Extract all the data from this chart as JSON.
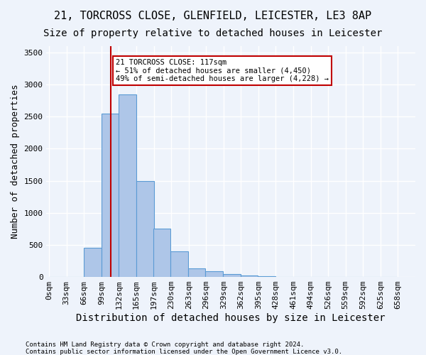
{
  "title1": "21, TORCROSS CLOSE, GLENFIELD, LEICESTER, LE3 8AP",
  "title2": "Size of property relative to detached houses in Leicester",
  "xlabel": "Distribution of detached houses by size in Leicester",
  "ylabel": "Number of detached properties",
  "footnote1": "Contains HM Land Registry data © Crown copyright and database right 2024.",
  "footnote2": "Contains public sector information licensed under the Open Government Licence v3.0.",
  "annotation_line1": "21 TORCROSS CLOSE: 117sqm",
  "annotation_line2": "← 51% of detached houses are smaller (4,450)",
  "annotation_line3": "49% of semi-detached houses are larger (4,228) →",
  "bin_width": 33,
  "bin_starts": [
    0,
    33,
    66,
    99,
    132,
    165,
    197,
    230,
    263,
    296,
    329,
    362,
    395,
    428,
    461,
    494,
    526,
    559,
    592,
    625
  ],
  "bin_labels": [
    "0sqm",
    "33sqm",
    "66sqm",
    "99sqm",
    "132sqm",
    "165sqm",
    "197sqm",
    "230sqm",
    "263sqm",
    "296sqm",
    "329sqm",
    "362sqm",
    "395sqm",
    "428sqm",
    "461sqm",
    "494sqm",
    "526sqm",
    "559sqm",
    "592sqm",
    "625sqm",
    "658sqm"
  ],
  "bar_heights": [
    0,
    0,
    450,
    2550,
    2850,
    1500,
    750,
    400,
    130,
    90,
    50,
    20,
    10,
    5,
    0,
    0,
    0,
    0,
    0,
    0
  ],
  "bar_color": "#aec6e8",
  "bar_edgecolor": "#5b9bd5",
  "vline_x": 117,
  "vline_color": "#c00000",
  "ylim": [
    0,
    3600
  ],
  "yticks": [
    0,
    500,
    1000,
    1500,
    2000,
    2500,
    3000,
    3500
  ],
  "bg_color": "#eef3fb",
  "grid_color": "#ffffff",
  "annotation_box_color": "#c00000",
  "title_fontsize": 11,
  "axis_label_fontsize": 9,
  "tick_fontsize": 8
}
